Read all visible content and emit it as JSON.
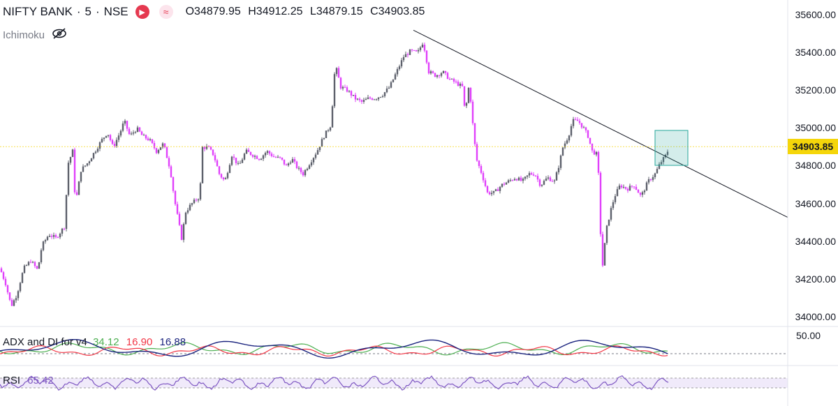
{
  "header": {
    "symbol": "NIFTY BANK",
    "sep1": "·",
    "interval": "5",
    "sep2": "·",
    "exchange": "NSE",
    "flag_icon": "flag-icon",
    "wave_icon": "wave-icon",
    "open": "O34879.95",
    "high": "H34912.25",
    "low": "L34879.15",
    "close": "C34903.85"
  },
  "study": {
    "label": "Ichimoku",
    "icon": "eye-slash-icon"
  },
  "price_axis": {
    "ticks": [
      "35600.00",
      "35400.00",
      "35200.00",
      "35000.00",
      "34800.00",
      "34600.00",
      "34400.00",
      "34200.00",
      "34000.00"
    ],
    "tick_values": [
      35600,
      35400,
      35200,
      35000,
      34800,
      34600,
      34400,
      34200,
      34000
    ],
    "last_price": "34903.85",
    "last_price_value": 34903.85
  },
  "adx": {
    "label": "ADX and DI for v4",
    "adx_value": "34.12",
    "di_plus_value": "16.90",
    "di_minus_value": "16.88",
    "axis_label": "50.00"
  },
  "rsi": {
    "label": "RSI",
    "value": "65.42"
  },
  "colors": {
    "up_candle": "#5d606b",
    "down_candle": "#e040fb",
    "trendline": "#131722",
    "last_price_line": "#f5d60a",
    "highlight_box": "#26a69a",
    "adx_line": "#1a237e",
    "di_plus": "#4caf50",
    "di_minus": "#f23645",
    "rsi_line": "#7e57c2",
    "rsi_band": "#e1d5f5"
  },
  "chart_data": {
    "type": "candlestick",
    "ylim": [
      33960,
      35680
    ],
    "path_points": [
      [
        0,
        34260
      ],
      [
        8,
        34180
      ],
      [
        16,
        34060
      ],
      [
        24,
        34120
      ],
      [
        34,
        34260
      ],
      [
        44,
        34300
      ],
      [
        54,
        34250
      ],
      [
        60,
        34380
      ],
      [
        70,
        34440
      ],
      [
        80,
        34420
      ],
      [
        92,
        34480
      ],
      [
        98,
        34820
      ],
      [
        104,
        34880
      ],
      [
        108,
        34600
      ],
      [
        116,
        34780
      ],
      [
        126,
        34820
      ],
      [
        136,
        34880
      ],
      [
        146,
        34940
      ],
      [
        154,
        34980
      ],
      [
        162,
        34900
      ],
      [
        172,
        34980
      ],
      [
        178,
        35040
      ],
      [
        186,
        34960
      ],
      [
        196,
        35000
      ],
      [
        204,
        34960
      ],
      [
        214,
        34940
      ],
      [
        224,
        34880
      ],
      [
        234,
        34920
      ],
      [
        244,
        34780
      ],
      [
        250,
        34620
      ],
      [
        256,
        34500
      ],
      [
        260,
        34420
      ],
      [
        266,
        34560
      ],
      [
        274,
        34600
      ],
      [
        286,
        34640
      ],
      [
        290,
        34900
      ],
      [
        298,
        34900
      ],
      [
        306,
        34860
      ],
      [
        314,
        34760
      ],
      [
        322,
        34720
      ],
      [
        332,
        34860
      ],
      [
        342,
        34800
      ],
      [
        352,
        34880
      ],
      [
        362,
        34860
      ],
      [
        372,
        34840
      ],
      [
        382,
        34880
      ],
      [
        392,
        34850
      ],
      [
        402,
        34840
      ],
      [
        410,
        34800
      ],
      [
        418,
        34840
      ],
      [
        426,
        34790
      ],
      [
        434,
        34760
      ],
      [
        444,
        34820
      ],
      [
        454,
        34880
      ],
      [
        464,
        34960
      ],
      [
        474,
        35020
      ],
      [
        480,
        35340
      ],
      [
        488,
        35220
      ],
      [
        498,
        35200
      ],
      [
        508,
        35160
      ],
      [
        518,
        35140
      ],
      [
        528,
        35160
      ],
      [
        538,
        35160
      ],
      [
        548,
        35180
      ],
      [
        558,
        35220
      ],
      [
        568,
        35300
      ],
      [
        578,
        35380
      ],
      [
        588,
        35410
      ],
      [
        598,
        35400
      ],
      [
        606,
        35460
      ],
      [
        614,
        35300
      ],
      [
        624,
        35280
      ],
      [
        634,
        35300
      ],
      [
        644,
        35260
      ],
      [
        654,
        35240
      ],
      [
        662,
        35220
      ],
      [
        666,
        35080
      ],
      [
        672,
        35240
      ],
      [
        676,
        35060
      ],
      [
        682,
        34840
      ],
      [
        690,
        34760
      ],
      [
        698,
        34660
      ],
      [
        708,
        34660
      ],
      [
        718,
        34700
      ],
      [
        728,
        34720
      ],
      [
        738,
        34740
      ],
      [
        748,
        34720
      ],
      [
        758,
        34760
      ],
      [
        766,
        34760
      ],
      [
        774,
        34700
      ],
      [
        784,
        34740
      ],
      [
        794,
        34720
      ],
      [
        800,
        34800
      ],
      [
        806,
        34900
      ],
      [
        814,
        34960
      ],
      [
        820,
        35040
      ],
      [
        828,
        35040
      ],
      [
        836,
        35000
      ],
      [
        842,
        34960
      ],
      [
        848,
        34880
      ],
      [
        856,
        34860
      ],
      [
        862,
        34240
      ],
      [
        868,
        34460
      ],
      [
        874,
        34560
      ],
      [
        880,
        34640
      ],
      [
        888,
        34700
      ],
      [
        898,
        34680
      ],
      [
        908,
        34700
      ],
      [
        918,
        34640
      ],
      [
        928,
        34720
      ],
      [
        938,
        34760
      ],
      [
        946,
        34820
      ],
      [
        954,
        34860
      ],
      [
        958,
        34900
      ]
    ],
    "trendline": [
      [
        592,
        35520
      ],
      [
        1128,
        34530
      ]
    ],
    "highlight": {
      "x0": 938,
      "x1": 985,
      "y0": 34805,
      "y1": 34990
    }
  }
}
